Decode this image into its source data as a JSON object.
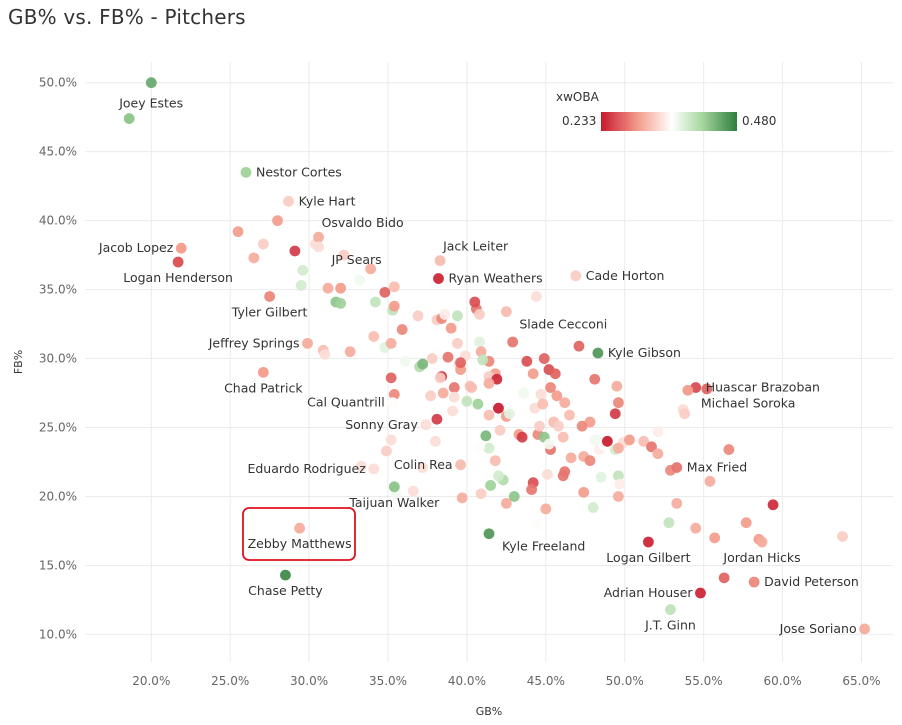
{
  "page_title": "GB% vs. FB% - Pitchers",
  "chart_data": {
    "type": "scatter",
    "title": "GB% vs. FB% - Pitchers",
    "xlabel": "GB%",
    "ylabel": "FB%",
    "xlim": [
      15.8,
      67.0
    ],
    "ylim": [
      8.0,
      51.5
    ],
    "x_ticks": [
      20,
      25,
      30,
      35,
      40,
      45,
      50,
      55,
      60,
      65
    ],
    "y_ticks": [
      10,
      15,
      20,
      25,
      30,
      35,
      40,
      45,
      50
    ],
    "x_tick_labels": [
      "20.0%",
      "25.0%",
      "30.0%",
      "35.0%",
      "40.0%",
      "45.0%",
      "50.0%",
      "55.0%",
      "60.0%",
      "65.0%"
    ],
    "y_tick_labels": [
      "10.0%",
      "15.0%",
      "20.0%",
      "25.0%",
      "30.0%",
      "35.0%",
      "40.0%",
      "45.0%",
      "50.0%"
    ],
    "grid": true,
    "color_legend": {
      "title": "xwOBA",
      "min_label": "0.233",
      "max_label": "0.480",
      "min": 0.233,
      "max": 0.48,
      "colors": [
        "#c81a2e",
        "#f4a08e",
        "#ffffff",
        "#a8d8a0",
        "#2e7d3e"
      ]
    },
    "highlight": "Zebby Matthews",
    "labeled_points": [
      {
        "name": "Joey Estes",
        "x": 18.6,
        "y": 47.4,
        "xwoba": 0.43,
        "label_pos": "above"
      },
      {
        "name": "Nestor Cortes",
        "x": 26.0,
        "y": 43.5,
        "xwoba": 0.42,
        "label_pos": "right"
      },
      {
        "name": "Kyle Hart",
        "x": 28.7,
        "y": 41.4,
        "xwoba": 0.33,
        "label_pos": "right"
      },
      {
        "name": "Osvaldo Bido",
        "x": 30.6,
        "y": 38.8,
        "xwoba": 0.31,
        "label_pos": "above-right"
      },
      {
        "name": "JP Sears",
        "x": 30.6,
        "y": 38.1,
        "xwoba": 0.34,
        "label_pos": "below-right"
      },
      {
        "name": "Jacob Lopez",
        "x": 21.9,
        "y": 38.0,
        "xwoba": 0.3,
        "label_pos": "left"
      },
      {
        "name": "Logan Henderson",
        "x": 21.7,
        "y": 37.0,
        "xwoba": 0.26,
        "label_pos": "below"
      },
      {
        "name": "Jack Leiter",
        "x": 38.3,
        "y": 37.1,
        "xwoba": 0.32,
        "label_pos": "above-right"
      },
      {
        "name": "Ryan Weathers",
        "x": 38.2,
        "y": 35.8,
        "xwoba": 0.24,
        "label_pos": "right"
      },
      {
        "name": "Cade Horton",
        "x": 46.9,
        "y": 36.0,
        "xwoba": 0.33,
        "label_pos": "right"
      },
      {
        "name": "Tyler Gilbert",
        "x": 27.5,
        "y": 34.5,
        "xwoba": 0.29,
        "label_pos": "below"
      },
      {
        "name": "Slade Cecconi",
        "x": 42.5,
        "y": 33.4,
        "xwoba": 0.32,
        "label_pos": "below-right"
      },
      {
        "name": "Jeffrey Springs",
        "x": 29.9,
        "y": 31.1,
        "xwoba": 0.31,
        "label_pos": "left"
      },
      {
        "name": "Kyle Gibson",
        "x": 48.3,
        "y": 30.4,
        "xwoba": 0.46,
        "label_pos": "right"
      },
      {
        "name": "Chad Patrick",
        "x": 27.1,
        "y": 29.0,
        "xwoba": 0.3,
        "label_pos": "below"
      },
      {
        "name": "Huascar Brazoban",
        "x": 54.5,
        "y": 27.9,
        "xwoba": 0.26,
        "label_pos": "right"
      },
      {
        "name": "Cal Quantrill",
        "x": 35.3,
        "y": 26.8,
        "xwoba": 0.36,
        "label_pos": "left"
      },
      {
        "name": "Michael Soroka",
        "x": 54.0,
        "y": 27.7,
        "xwoba": 0.3,
        "label_pos": "below-right"
      },
      {
        "name": "Sonny Gray",
        "x": 37.4,
        "y": 25.2,
        "xwoba": 0.34,
        "label_pos": "left"
      },
      {
        "name": "Eduardo Rodriguez",
        "x": 34.1,
        "y": 22.0,
        "xwoba": 0.34,
        "label_pos": "left"
      },
      {
        "name": "Colin Rea",
        "x": 39.6,
        "y": 22.3,
        "xwoba": 0.32,
        "label_pos": "left"
      },
      {
        "name": "Max Fried",
        "x": 53.3,
        "y": 22.1,
        "xwoba": 0.28,
        "label_pos": "right"
      },
      {
        "name": "Taijuan Walker",
        "x": 35.4,
        "y": 20.7,
        "xwoba": 0.43,
        "label_pos": "below"
      },
      {
        "name": "Zebby Matthews",
        "x": 29.4,
        "y": 17.7,
        "xwoba": 0.31,
        "label_pos": "below"
      },
      {
        "name": "Kyle Freeland",
        "x": 41.4,
        "y": 17.3,
        "xwoba": 0.46,
        "label_pos": "below-right"
      },
      {
        "name": "Logan Gilbert",
        "x": 51.5,
        "y": 16.7,
        "xwoba": 0.24,
        "label_pos": "below"
      },
      {
        "name": "Jordan Hicks",
        "x": 58.7,
        "y": 16.7,
        "xwoba": 0.31,
        "label_pos": "below"
      },
      {
        "name": "Chase Petty",
        "x": 28.5,
        "y": 14.3,
        "xwoba": 0.47,
        "label_pos": "below"
      },
      {
        "name": "David Peterson",
        "x": 58.2,
        "y": 13.8,
        "xwoba": 0.29,
        "label_pos": "right"
      },
      {
        "name": "Adrian Houser",
        "x": 54.8,
        "y": 13.0,
        "xwoba": 0.24,
        "label_pos": "left"
      },
      {
        "name": "J.T. Ginn",
        "x": 52.9,
        "y": 11.8,
        "xwoba": 0.4,
        "label_pos": "below"
      },
      {
        "name": "Jose Soriano",
        "x": 65.2,
        "y": 10.4,
        "xwoba": 0.31,
        "label_pos": "left"
      }
    ],
    "other_points": [
      [
        20.0,
        50.0,
        0.45
      ],
      [
        25.5,
        39.2,
        0.3
      ],
      [
        28.0,
        40.0,
        0.3
      ],
      [
        26.5,
        37.3,
        0.31
      ],
      [
        27.1,
        38.3,
        0.33
      ],
      [
        29.1,
        37.8,
        0.25
      ],
      [
        30.4,
        38.3,
        0.34
      ],
      [
        32.2,
        37.5,
        0.33
      ],
      [
        33.9,
        36.5,
        0.31
      ],
      [
        35.4,
        35.2,
        0.32
      ],
      [
        29.6,
        36.4,
        0.39
      ],
      [
        31.2,
        35.1,
        0.31
      ],
      [
        32.0,
        35.1,
        0.3
      ],
      [
        34.8,
        34.8,
        0.27
      ],
      [
        29.5,
        35.3,
        0.39
      ],
      [
        31.7,
        34.1,
        0.43
      ],
      [
        32.0,
        34.0,
        0.42
      ],
      [
        33.2,
        35.7,
        0.37
      ],
      [
        34.2,
        34.1,
        0.4
      ],
      [
        35.3,
        33.5,
        0.4
      ],
      [
        36.9,
        33.1,
        0.33
      ],
      [
        35.4,
        33.8,
        0.3
      ],
      [
        34.1,
        31.6,
        0.32
      ],
      [
        35.9,
        32.1,
        0.29
      ],
      [
        34.8,
        30.8,
        0.38
      ],
      [
        32.6,
        30.5,
        0.31
      ],
      [
        30.9,
        30.6,
        0.32
      ],
      [
        31.0,
        30.3,
        0.34
      ],
      [
        35.2,
        31.1,
        0.31
      ],
      [
        36.1,
        29.8,
        0.37
      ],
      [
        37.0,
        29.4,
        0.41
      ],
      [
        38.0,
        30.3,
        0.36
      ],
      [
        38.1,
        32.8,
        0.33
      ],
      [
        38.4,
        32.9,
        0.29
      ],
      [
        39.0,
        32.2,
        0.3
      ],
      [
        38.6,
        33.2,
        0.35
      ],
      [
        39.4,
        33.1,
        0.4
      ],
      [
        40.6,
        33.6,
        0.28
      ],
      [
        40.8,
        33.2,
        0.33
      ],
      [
        40.8,
        31.2,
        0.38
      ],
      [
        39.4,
        31.1,
        0.33
      ],
      [
        38.8,
        30.1,
        0.28
      ],
      [
        38.4,
        28.7,
        0.25
      ],
      [
        39.5,
        29.6,
        0.34
      ],
      [
        39.9,
        30.2,
        0.34
      ],
      [
        40.9,
        30.5,
        0.31
      ],
      [
        41.4,
        29.8,
        0.29
      ],
      [
        42.9,
        31.2,
        0.28
      ],
      [
        41.8,
        28.9,
        0.3
      ],
      [
        41.4,
        28.7,
        0.33
      ],
      [
        41.9,
        28.5,
        0.24
      ],
      [
        41.4,
        28.2,
        0.31
      ],
      [
        40.3,
        27.9,
        0.32
      ],
      [
        39.2,
        27.9,
        0.28
      ],
      [
        38.5,
        27.5,
        0.31
      ],
      [
        37.7,
        27.3,
        0.33
      ],
      [
        39.2,
        27.2,
        0.34
      ],
      [
        39.1,
        26.2,
        0.34
      ],
      [
        40.0,
        26.9,
        0.4
      ],
      [
        40.7,
        26.7,
        0.42
      ],
      [
        41.4,
        25.9,
        0.32
      ],
      [
        42.0,
        26.4,
        0.23
      ],
      [
        42.5,
        25.8,
        0.3
      ],
      [
        42.1,
        24.8,
        0.33
      ],
      [
        43.3,
        24.5,
        0.3
      ],
      [
        43.5,
        24.3,
        0.25
      ],
      [
        42.7,
        26.0,
        0.38
      ],
      [
        43.6,
        27.5,
        0.37
      ],
      [
        44.2,
        28.9,
        0.3
      ],
      [
        43.8,
        29.8,
        0.26
      ],
      [
        44.9,
        30.0,
        0.27
      ],
      [
        45.2,
        29.2,
        0.26
      ],
      [
        45.6,
        28.9,
        0.27
      ],
      [
        45.3,
        27.9,
        0.29
      ],
      [
        45.7,
        27.3,
        0.3
      ],
      [
        44.7,
        27.4,
        0.34
      ],
      [
        44.3,
        26.4,
        0.34
      ],
      [
        44.8,
        26.7,
        0.32
      ],
      [
        45.5,
        25.4,
        0.32
      ],
      [
        45.8,
        25.1,
        0.33
      ],
      [
        46.1,
        24.3,
        0.32
      ],
      [
        45.3,
        23.4,
        0.28
      ],
      [
        46.6,
        22.8,
        0.31
      ],
      [
        46.2,
        21.8,
        0.28
      ],
      [
        46.1,
        21.5,
        0.28
      ],
      [
        45.1,
        21.6,
        0.34
      ],
      [
        44.2,
        21.0,
        0.26
      ],
      [
        44.1,
        20.5,
        0.28
      ],
      [
        45.0,
        19.1,
        0.31
      ],
      [
        44.5,
        17.9,
        0.36
      ],
      [
        47.4,
        22.9,
        0.31
      ],
      [
        47.8,
        22.6,
        0.29
      ],
      [
        47.8,
        25.4,
        0.3
      ],
      [
        47.3,
        25.1,
        0.29
      ],
      [
        48.4,
        23.4,
        0.35
      ],
      [
        48.2,
        24.1,
        0.37
      ],
      [
        48.7,
        23.7,
        0.36
      ],
      [
        48.9,
        24.0,
        0.23
      ],
      [
        49.4,
        23.4,
        0.39
      ],
      [
        49.9,
        23.9,
        0.34
      ],
      [
        49.6,
        23.5,
        0.31
      ],
      [
        47.4,
        20.3,
        0.3
      ],
      [
        48.0,
        19.2,
        0.39
      ],
      [
        48.5,
        21.4,
        0.38
      ],
      [
        49.6,
        21.5,
        0.4
      ],
      [
        49.7,
        20.9,
        0.35
      ],
      [
        49.6,
        20.0,
        0.31
      ],
      [
        48.1,
        28.5,
        0.28
      ],
      [
        49.5,
        28.0,
        0.31
      ],
      [
        49.6,
        26.8,
        0.29
      ],
      [
        49.4,
        26.0,
        0.25
      ],
      [
        47.1,
        30.9,
        0.27
      ],
      [
        48.1,
        24.1,
        0.37
      ],
      [
        44.4,
        34.5,
        0.34
      ],
      [
        40.5,
        34.1,
        0.26
      ],
      [
        41.0,
        29.9,
        0.4
      ],
      [
        39.6,
        29.2,
        0.3
      ],
      [
        40.2,
        28.0,
        0.32
      ],
      [
        37.8,
        30.0,
        0.33
      ],
      [
        36.5,
        25.3,
        0.36
      ],
      [
        37.2,
        29.6,
        0.44
      ],
      [
        35.4,
        27.4,
        0.29
      ],
      [
        35.2,
        28.6,
        0.27
      ],
      [
        38.1,
        25.6,
        0.25
      ],
      [
        38.0,
        24.0,
        0.34
      ],
      [
        38.3,
        28.6,
        0.33
      ],
      [
        39.6,
        29.7,
        0.27
      ],
      [
        41.2,
        24.4,
        0.44
      ],
      [
        41.4,
        23.5,
        0.39
      ],
      [
        40.8,
        23.6,
        0.36
      ],
      [
        41.8,
        22.6,
        0.32
      ],
      [
        42.3,
        21.2,
        0.41
      ],
      [
        42.0,
        21.5,
        0.39
      ],
      [
        41.5,
        20.8,
        0.42
      ],
      [
        43.0,
        20.0,
        0.43
      ],
      [
        42.5,
        19.5,
        0.31
      ],
      [
        40.9,
        20.2,
        0.33
      ],
      [
        39.7,
        19.9,
        0.31
      ],
      [
        37.2,
        22.1,
        0.34
      ],
      [
        33.3,
        22.2,
        0.34
      ],
      [
        35.5,
        20.2,
        0.37
      ],
      [
        35.2,
        24.1,
        0.34
      ],
      [
        34.9,
        23.3,
        0.33
      ],
      [
        36.6,
        20.4,
        0.34
      ],
      [
        44.5,
        24.5,
        0.29
      ],
      [
        44.9,
        24.3,
        0.43
      ],
      [
        44.6,
        25.1,
        0.33
      ],
      [
        45.2,
        23.8,
        0.37
      ],
      [
        46.2,
        26.8,
        0.31
      ],
      [
        46.5,
        25.9,
        0.32
      ],
      [
        51.2,
        24.0,
        0.32
      ],
      [
        50.3,
        24.1,
        0.3
      ],
      [
        51.7,
        23.6,
        0.28
      ],
      [
        52.1,
        23.1,
        0.31
      ],
      [
        52.1,
        24.7,
        0.35
      ],
      [
        53.3,
        19.5,
        0.31
      ],
      [
        52.8,
        18.1,
        0.4
      ],
      [
        54.5,
        17.7,
        0.31
      ],
      [
        55.7,
        17.0,
        0.3
      ],
      [
        57.7,
        18.1,
        0.3
      ],
      [
        58.5,
        16.9,
        0.3
      ],
      [
        59.4,
        19.4,
        0.24
      ],
      [
        56.6,
        23.4,
        0.29
      ],
      [
        55.4,
        21.1,
        0.31
      ],
      [
        52.9,
        21.9,
        0.29
      ],
      [
        53.7,
        26.3,
        0.34
      ],
      [
        53.8,
        26.0,
        0.33
      ],
      [
        56.3,
        14.1,
        0.27
      ],
      [
        63.8,
        17.1,
        0.33
      ],
      [
        55.2,
        27.8,
        0.27
      ]
    ]
  }
}
